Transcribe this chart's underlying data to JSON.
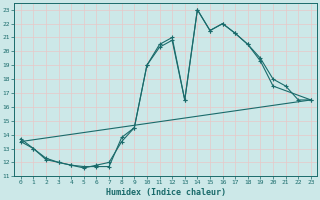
{
  "xlabel": "Humidex (Indice chaleur)",
  "xlim": [
    -0.5,
    23.5
  ],
  "ylim": [
    11,
    23.5
  ],
  "yticks": [
    11,
    12,
    13,
    14,
    15,
    16,
    17,
    18,
    19,
    20,
    21,
    22,
    23
  ],
  "xticks": [
    0,
    1,
    2,
    3,
    4,
    5,
    6,
    7,
    8,
    9,
    10,
    11,
    12,
    13,
    14,
    15,
    16,
    17,
    18,
    19,
    20,
    21,
    22,
    23
  ],
  "bg_color": "#cce8e8",
  "grid_color": "#bbdddd",
  "line_color": "#1a6b6b",
  "curve1_x": [
    0,
    1,
    2,
    3,
    4,
    5,
    6,
    7,
    8,
    9,
    10,
    11,
    12,
    13,
    14,
    15,
    16,
    17,
    18,
    19,
    20,
    21,
    22,
    23
  ],
  "curve1_y": [
    13.7,
    13.0,
    12.3,
    12.0,
    11.8,
    11.7,
    11.7,
    11.7,
    13.8,
    14.5,
    19.0,
    20.5,
    21.0,
    16.5,
    23.0,
    21.5,
    22.0,
    21.3,
    20.5,
    19.5,
    18.0,
    17.5,
    16.5,
    16.5
  ],
  "curve2_x": [
    0,
    1,
    2,
    3,
    4,
    5,
    6,
    7,
    8,
    9,
    10,
    11,
    12,
    13,
    14,
    15,
    16,
    17,
    18,
    19,
    20,
    23
  ],
  "curve2_y": [
    13.5,
    13.0,
    12.2,
    12.0,
    11.8,
    11.6,
    11.8,
    12.0,
    13.5,
    14.5,
    19.0,
    20.3,
    20.8,
    16.5,
    23.0,
    21.5,
    22.0,
    21.3,
    20.5,
    19.3,
    17.5,
    16.5
  ],
  "curve3_x": [
    0,
    23
  ],
  "curve3_y": [
    13.5,
    16.5
  ]
}
